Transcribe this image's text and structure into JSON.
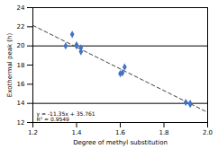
{
  "chart_data": {
    "type": "scatter",
    "xlabel": "Degree of methyl substitution",
    "ylabel": "Exothermal peak (h)",
    "x": [
      1.35,
      1.38,
      1.4,
      1.4,
      1.42,
      1.42,
      1.6,
      1.61,
      1.62,
      1.9,
      1.92,
      1.92
    ],
    "values": [
      20.0,
      21.2,
      20.1,
      20.0,
      19.4,
      19.8,
      17.1,
      17.2,
      17.8,
      14.1,
      14.0,
      13.9
    ],
    "color": "#4472C4",
    "marker": "diamond",
    "trendline": {
      "x": [
        1.2,
        2.0
      ],
      "y": [
        22.141,
        13.061
      ],
      "color": "#404040",
      "line_style": "dashed"
    },
    "hlines": {
      "values": [
        14,
        20
      ],
      "color": "#000000"
    },
    "annotations": [
      "y = -11.35x + 35.761",
      "R² = 0.9549"
    ],
    "xlim": [
      1.2,
      2.0
    ],
    "ylim": [
      12,
      24
    ],
    "xticks": [
      1.2,
      1.4,
      1.6,
      1.8,
      {
        "value": 2.0,
        "label": "2.0"
      }
    ],
    "yticks": [
      12,
      14,
      16,
      18,
      20,
      22,
      24
    ],
    "grid": false
  }
}
